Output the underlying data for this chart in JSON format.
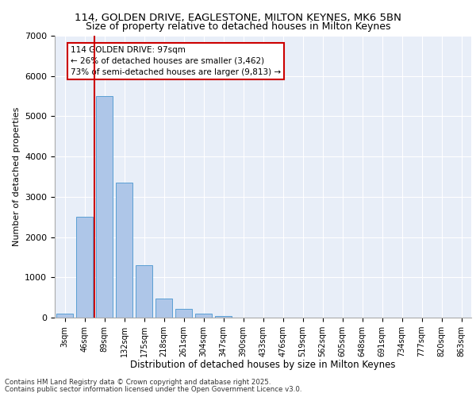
{
  "title_line1": "114, GOLDEN DRIVE, EAGLESTONE, MILTON KEYNES, MK6 5BN",
  "title_line2": "Size of property relative to detached houses in Milton Keynes",
  "xlabel": "Distribution of detached houses by size in Milton Keynes",
  "ylabel": "Number of detached properties",
  "bar_values": [
    100,
    2500,
    5500,
    3350,
    1300,
    480,
    220,
    90,
    30,
    5,
    0,
    0,
    0,
    0,
    0,
    0,
    0,
    0,
    0,
    0,
    0
  ],
  "bar_color": "#aec6e8",
  "bar_edge_color": "#5a9fd4",
  "vline_color": "#cc0000",
  "annotation_title": "114 GOLDEN DRIVE: 97sqm",
  "annotation_line1": "← 26% of detached houses are smaller (3,462)",
  "annotation_line2": "73% of semi-detached houses are larger (9,813) →",
  "annotation_box_color": "#cc0000",
  "ylim": [
    0,
    7000
  ],
  "yticks": [
    0,
    1000,
    2000,
    3000,
    4000,
    5000,
    6000,
    7000
  ],
  "background_color": "#e8eef8",
  "footer_line1": "Contains HM Land Registry data © Crown copyright and database right 2025.",
  "footer_line2": "Contains public sector information licensed under the Open Government Licence v3.0.",
  "tick_labels": [
    "3sqm",
    "46sqm",
    "89sqm",
    "132sqm",
    "175sqm",
    "218sqm",
    "261sqm",
    "304sqm",
    "347sqm",
    "390sqm",
    "433sqm",
    "476sqm",
    "519sqm",
    "562sqm",
    "605sqm",
    "648sqm",
    "691sqm",
    "734sqm",
    "777sqm",
    "820sqm",
    "863sqm"
  ]
}
